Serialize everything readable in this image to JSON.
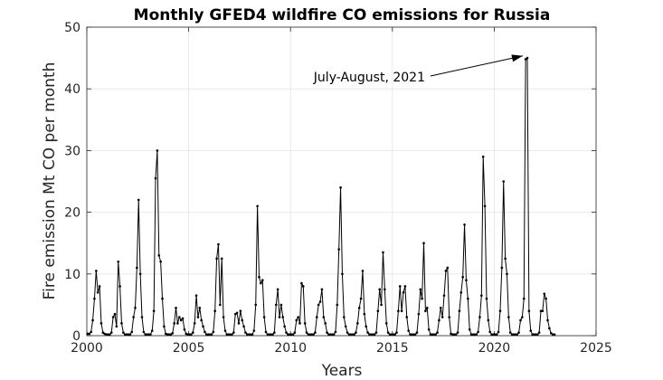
{
  "chart_data": {
    "type": "line",
    "title": "Monthly  GFED4 wildfire CO emissions  for Russia",
    "xlabel": "Years",
    "ylabel": "Fire emission Mt CO per month",
    "xlim": [
      2000,
      2025
    ],
    "ylim": [
      0,
      50
    ],
    "xticks": [
      2000,
      2005,
      2010,
      2015,
      2020,
      2025
    ],
    "yticks": [
      0,
      10,
      20,
      30,
      40,
      50
    ],
    "grid": true,
    "line_color": "#000000",
    "annotation": {
      "text": "July-August, 2021",
      "x": 2021.58,
      "y": 45.2
    },
    "series": [
      {
        "start": 2000,
        "values": [
          0.3,
          0.3,
          0.6,
          2.5,
          6.0,
          10.5,
          7.0,
          8.0,
          2.0,
          0.5,
          0.3,
          0.2,
          0.2,
          0.2,
          0.5,
          3.0,
          3.5,
          1.5,
          12.0,
          8.0,
          2.0,
          0.5,
          0.2,
          0.2,
          0.2,
          0.2,
          0.6,
          3.0,
          4.5,
          11.0,
          22.0,
          10.0,
          3.0,
          0.6,
          0.2,
          0.2,
          0.2,
          0.2,
          0.8,
          4.0,
          25.5,
          30.0,
          13.0,
          12.0,
          6.0,
          1.5,
          0.3,
          0.2,
          0.2,
          0.2,
          0.4,
          2.0,
          4.5,
          2.0,
          3.0,
          2.5,
          2.8,
          1.0,
          0.3,
          0.2,
          0.2,
          0.2,
          0.5,
          2.0,
          6.5,
          3.0,
          4.5,
          2.5,
          1.5,
          0.6,
          0.2,
          0.2,
          0.2,
          0.2,
          0.6,
          4.0,
          12.5,
          14.8,
          5.0,
          12.5,
          3.0,
          0.8,
          0.2,
          0.2,
          0.2,
          0.2,
          0.5,
          3.5,
          3.7,
          2.0,
          4.0,
          2.5,
          1.5,
          0.5,
          0.2,
          0.2,
          0.2,
          0.2,
          0.8,
          5.0,
          21.0,
          9.5,
          8.5,
          9.0,
          3.0,
          0.6,
          0.2,
          0.2,
          0.2,
          0.2,
          0.5,
          5.0,
          7.5,
          3.0,
          5.0,
          3.0,
          1.5,
          0.5,
          0.2,
          0.2,
          0.2,
          0.2,
          0.5,
          2.5,
          3.0,
          2.0,
          8.5,
          8.0,
          2.0,
          0.5,
          0.2,
          0.2,
          0.2,
          0.2,
          0.5,
          3.0,
          5.0,
          5.5,
          7.5,
          3.0,
          2.0,
          0.5,
          0.2,
          0.2,
          0.2,
          0.2,
          0.6,
          5.0,
          14.0,
          24.0,
          10.0,
          3.0,
          1.5,
          0.5,
          0.2,
          0.2,
          0.2,
          0.2,
          0.5,
          2.0,
          4.5,
          6.0,
          10.5,
          3.5,
          1.5,
          0.5,
          0.2,
          0.2,
          0.2,
          0.2,
          0.5,
          4.0,
          7.5,
          5.0,
          13.5,
          7.5,
          2.0,
          0.5,
          0.2,
          0.2,
          0.2,
          0.2,
          0.5,
          4.0,
          8.0,
          4.0,
          7.0,
          8.0,
          3.0,
          0.8,
          0.2,
          0.2,
          0.2,
          0.2,
          0.5,
          3.5,
          7.5,
          6.0,
          15.0,
          4.0,
          4.5,
          1.0,
          0.2,
          0.2,
          0.2,
          0.2,
          0.5,
          2.5,
          4.5,
          3.0,
          6.5,
          10.5,
          11.0,
          3.0,
          0.3,
          0.2,
          0.2,
          0.2,
          0.5,
          4.0,
          7.0,
          9.5,
          18.0,
          9.0,
          6.0,
          1.0,
          0.2,
          0.2,
          0.2,
          0.2,
          0.6,
          3.0,
          6.5,
          29.0,
          21.0,
          6.0,
          2.5,
          0.6,
          0.2,
          0.2,
          0.2,
          0.2,
          0.6,
          4.0,
          11.0,
          25.0,
          12.5,
          10.0,
          3.0,
          0.5,
          0.2,
          0.2,
          0.2,
          0.2,
          0.5,
          2.5,
          3.0,
          6.0,
          44.8,
          45.0,
          4.0,
          0.8,
          0.2,
          0.2,
          0.2,
          0.2,
          0.5,
          4.0,
          4.0,
          6.8,
          6.0,
          2.5,
          1.2,
          0.4,
          0.2,
          0.2
        ]
      }
    ]
  }
}
